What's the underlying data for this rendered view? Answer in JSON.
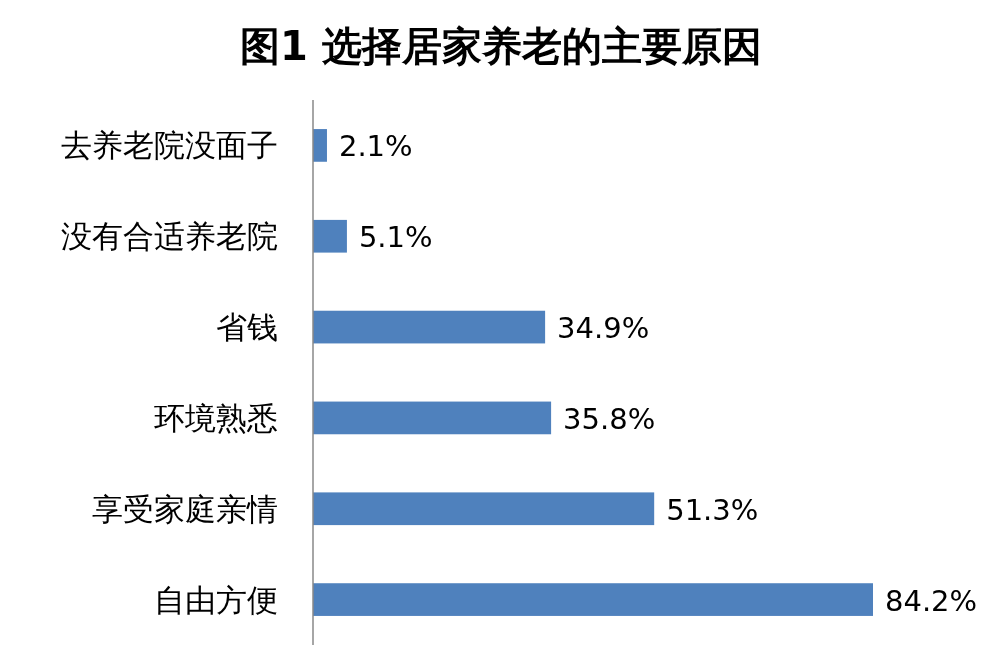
{
  "chart_data": {
    "type": "bar",
    "orientation": "horizontal",
    "title": "图1  选择居家养老的主要原因",
    "categories": [
      "去养老院没面子",
      "没有合适养老院",
      "省钱",
      "环境熟悉",
      "享受家庭亲情",
      "自由方便"
    ],
    "values": [
      2.1,
      5.1,
      34.9,
      35.8,
      51.3,
      84.2
    ],
    "value_labels": [
      "2.1%",
      "5.1%",
      "34.9%",
      "35.8%",
      "51.3%",
      "84.2%"
    ],
    "color": "#4f81bd"
  }
}
